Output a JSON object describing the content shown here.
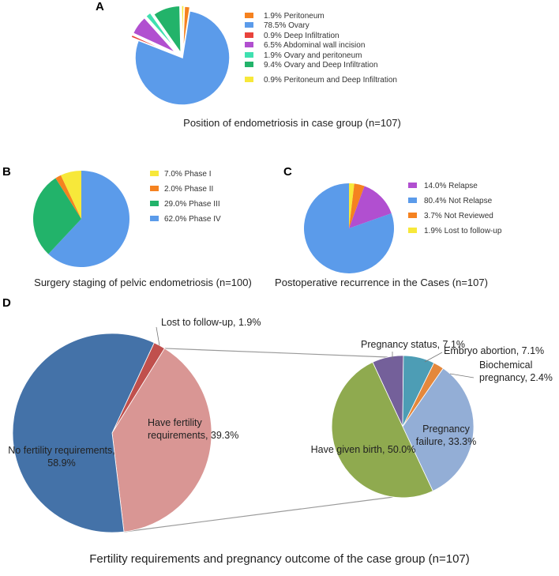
{
  "chart_data": [
    {
      "panel": "A",
      "type": "pie",
      "title": "Position of endometriosis in case group (n=107)",
      "legend_position": "right",
      "slices": [
        {
          "pct": "1.9%",
          "label": "Peritoneum",
          "value": 1.9,
          "color": "#f58220"
        },
        {
          "pct": "78.5%",
          "label": "Ovary",
          "value": 78.5,
          "color": "#5b9bea"
        },
        {
          "pct": "0.9%",
          "label": "Deep Infiltration",
          "value": 0.9,
          "color": "#e8433c"
        },
        {
          "pct": "6.5%",
          "label": "Abdominal wall incision",
          "value": 6.5,
          "color": "#b14fd0"
        },
        {
          "pct": "1.9%",
          "label": "Ovary and peritoneum",
          "value": 1.9,
          "color": "#3fe0b0"
        },
        {
          "pct": "9.4%",
          "label": "Ovary and  Deep Infiltration",
          "value": 9.4,
          "color": "#22b36a"
        },
        {
          "pct": "0.9%",
          "label": "Peritoneum and  Deep Infiltration",
          "value": 0.9,
          "color": "#f7e83a"
        }
      ]
    },
    {
      "panel": "B",
      "type": "pie",
      "title": "Surgery staging of pelvic endometriosis (n=100)",
      "legend_position": "right",
      "slices": [
        {
          "pct": "7.0%",
          "label": "Phase I",
          "value": 7.0,
          "color": "#f7e83a"
        },
        {
          "pct": "2.0%",
          "label": "Phase II",
          "value": 2.0,
          "color": "#f58220"
        },
        {
          "pct": "29.0%",
          "label": "Phase III",
          "value": 29.0,
          "color": "#22b36a"
        },
        {
          "pct": "62.0%",
          "label": "Phase IV",
          "value": 62.0,
          "color": "#5b9bea"
        }
      ]
    },
    {
      "panel": "C",
      "type": "pie",
      "title": "Postoperative recurrence in the Cases (n=107)",
      "legend_position": "right",
      "slices": [
        {
          "pct": "14.0%",
          "label": "Relapse",
          "value": 14.0,
          "color": "#b14fd0"
        },
        {
          "pct": "80.4%",
          "label": "Not  Relapse",
          "value": 80.4,
          "color": "#5b9bea"
        },
        {
          "pct": "3.7%",
          "label": "Not Reviewed",
          "value": 3.7,
          "color": "#f58220"
        },
        {
          "pct": "1.9%",
          "label": "Lost to follow-up",
          "value": 1.9,
          "color": "#f7e83a"
        }
      ]
    },
    {
      "panel": "D",
      "type": "pie",
      "subtype": "pie-of-pie",
      "title": "Fertility requirements and pregnancy outcome of the case group (n=107)",
      "main_pie": [
        {
          "label": "Lost to follow-up,  1.9%",
          "value": 1.9,
          "color": "#c0504d"
        },
        {
          "label": "Have fertility requirements, 39.3%",
          "lines": [
            "Have fertility",
            "requirements, 39.3%"
          ],
          "value": 39.3,
          "color": "#d99694"
        },
        {
          "label": "No fertility requirements, 58.9%",
          "lines": [
            "No fertility requirements,",
            "58.9%"
          ],
          "value": 58.9,
          "color": "#4472a8"
        }
      ],
      "secondary_pie": [
        {
          "label": "Have given birth, 50.0%",
          "lines": [
            "Have given birth, 50.0%"
          ],
          "value": 50.0,
          "color": "#8faa4f"
        },
        {
          "label": "Pregnancy status, 7.1%",
          "lines": [
            "Pregnancy status, 7.1%"
          ],
          "value": 7.1,
          "color": "#74609a"
        },
        {
          "label": "Embryo abortion, 7.1%",
          "lines": [
            "Embryo abortion, 7.1%"
          ],
          "value": 7.1,
          "color": "#4d9db5"
        },
        {
          "label": "Biochemical pregnancy, 2.4%",
          "lines": [
            "Biochemical",
            "pregnancy, 2.4%"
          ],
          "value": 2.4,
          "color": "#e4883c"
        },
        {
          "label": "Pregnancy failure, 33.3%",
          "lines": [
            "Pregnancy",
            "failure, 33.3%"
          ],
          "value": 33.3,
          "color": "#93aed6"
        }
      ]
    }
  ]
}
